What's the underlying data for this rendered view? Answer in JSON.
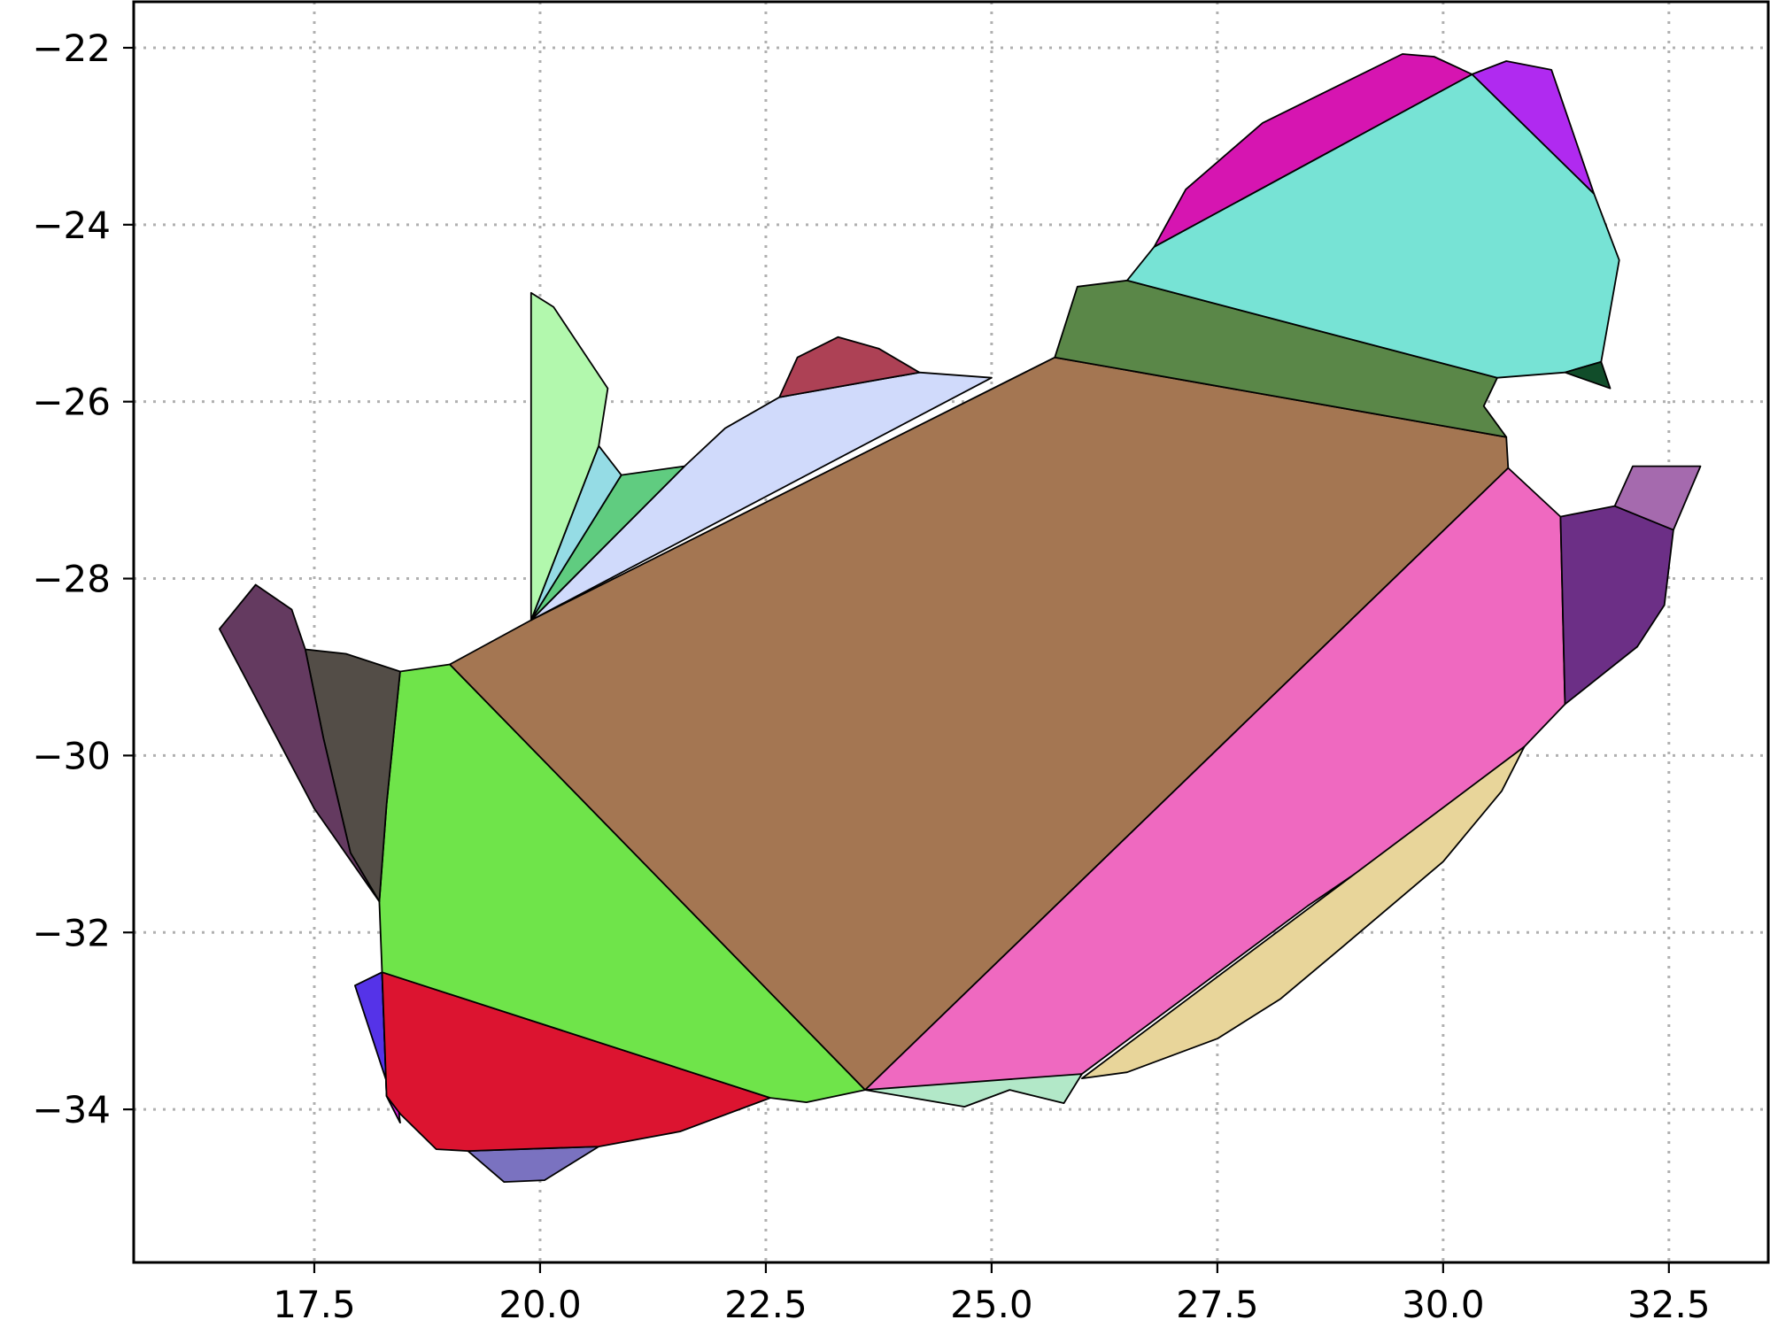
{
  "chart_data": {
    "type": "polygon_map",
    "title": "",
    "xlabel": "",
    "ylabel": "",
    "xlim": [
      15.5,
      33.6
    ],
    "ylim": [
      -35.73,
      -21.48
    ],
    "grid": true,
    "legend": "none",
    "x_ticks": [
      {
        "value": 17.5,
        "label": "17.5"
      },
      {
        "value": 20.0,
        "label": "20.0"
      },
      {
        "value": 22.5,
        "label": "22.5"
      },
      {
        "value": 25.0,
        "label": "25.0"
      },
      {
        "value": 27.5,
        "label": "27.5"
      },
      {
        "value": 30.0,
        "label": "30.0"
      },
      {
        "value": 32.5,
        "label": "32.5"
      }
    ],
    "y_ticks": [
      {
        "value": -22,
        "label": "−22"
      },
      {
        "value": -24,
        "label": "−24"
      },
      {
        "value": -26,
        "label": "−26"
      },
      {
        "value": -28,
        "label": "−28"
      },
      {
        "value": -30,
        "label": "−30"
      },
      {
        "value": -32,
        "label": "−32"
      },
      {
        "value": -34,
        "label": "−34"
      }
    ],
    "polygons": [
      {
        "color": "#7A72C0",
        "points": [
          [
            19.2,
            -34.47
          ],
          [
            19.6,
            -34.82
          ],
          [
            20.05,
            -34.8
          ],
          [
            20.65,
            -34.42
          ]
        ]
      },
      {
        "color": "#5533E8",
        "points": [
          [
            17.95,
            -32.6
          ],
          [
            18.25,
            -32.45
          ],
          [
            18.3,
            -33.85
          ],
          [
            18.45,
            -34.15
          ]
        ]
      },
      {
        "color": "#D41FD4",
        "points": [
          [
            18.25,
            -32.45
          ],
          [
            18.3,
            -33.85
          ],
          [
            18.45,
            -34.15
          ]
        ]
      },
      {
        "color": "#DC1430",
        "points": [
          [
            18.25,
            -32.45
          ],
          [
            22.55,
            -33.87
          ],
          [
            21.55,
            -34.25
          ],
          [
            20.65,
            -34.42
          ],
          [
            19.2,
            -34.47
          ],
          [
            18.85,
            -34.45
          ],
          [
            18.45,
            -34.05
          ],
          [
            18.3,
            -33.85
          ]
        ]
      },
      {
        "color": "#6FE44A",
        "points": [
          [
            18.45,
            -29.05
          ],
          [
            19.0,
            -28.97
          ],
          [
            23.6,
            -33.78
          ],
          [
            22.95,
            -33.92
          ],
          [
            22.55,
            -33.87
          ],
          [
            18.25,
            -32.45
          ],
          [
            18.22,
            -31.65
          ],
          [
            18.3,
            -30.55
          ]
        ]
      },
      {
        "color": "#534D47",
        "points": [
          [
            17.4,
            -28.8
          ],
          [
            17.85,
            -28.85
          ],
          [
            18.45,
            -29.05
          ],
          [
            18.3,
            -30.55
          ],
          [
            18.22,
            -31.65
          ],
          [
            17.9,
            -31.1
          ],
          [
            17.6,
            -29.8
          ]
        ]
      },
      {
        "color": "#643A60",
        "points": [
          [
            16.45,
            -28.57
          ],
          [
            16.85,
            -28.07
          ],
          [
            17.25,
            -28.35
          ],
          [
            17.4,
            -28.8
          ],
          [
            17.6,
            -29.8
          ],
          [
            17.9,
            -31.1
          ],
          [
            18.22,
            -31.65
          ],
          [
            17.5,
            -30.6
          ]
        ]
      },
      {
        "color": "#A47652",
        "points": [
          [
            19.0,
            -28.97
          ],
          [
            19.9,
            -28.47
          ],
          [
            25.7,
            -25.5
          ],
          [
            30.7,
            -26.4
          ],
          [
            30.72,
            -26.75
          ],
          [
            23.6,
            -33.78
          ]
        ]
      },
      {
        "color": "#EF69C0",
        "points": [
          [
            30.72,
            -26.75
          ],
          [
            31.3,
            -27.3
          ],
          [
            31.35,
            -29.42
          ],
          [
            30.9,
            -29.9
          ],
          [
            29.8,
            -30.8
          ],
          [
            28.5,
            -31.7
          ],
          [
            26.0,
            -33.6
          ],
          [
            25.2,
            -33.75
          ],
          [
            23.6,
            -33.78
          ]
        ]
      },
      {
        "color": "#E8D59A",
        "points": [
          [
            30.9,
            -29.9
          ],
          [
            30.65,
            -30.4
          ],
          [
            30.0,
            -31.2
          ],
          [
            28.9,
            -32.15
          ],
          [
            28.2,
            -32.75
          ],
          [
            27.5,
            -33.2
          ],
          [
            26.5,
            -33.58
          ],
          [
            26.0,
            -33.65
          ]
        ]
      },
      {
        "color": "#B2E8C8",
        "points": [
          [
            23.6,
            -33.78
          ],
          [
            24.7,
            -33.97
          ],
          [
            25.2,
            -33.78
          ],
          [
            25.8,
            -33.93
          ],
          [
            26.0,
            -33.6
          ]
        ]
      },
      {
        "color": "#5A8748",
        "points": [
          [
            25.7,
            -25.5
          ],
          [
            25.95,
            -24.7
          ],
          [
            26.5,
            -24.63
          ],
          [
            30.6,
            -25.73
          ],
          [
            30.45,
            -26.05
          ],
          [
            30.7,
            -26.4
          ]
        ]
      },
      {
        "color": "#77E3D5",
        "points": [
          [
            26.5,
            -24.63
          ],
          [
            26.8,
            -24.25
          ],
          [
            30.32,
            -22.3
          ],
          [
            31.67,
            -23.65
          ],
          [
            31.95,
            -24.4
          ],
          [
            31.75,
            -25.55
          ],
          [
            31.35,
            -25.67
          ],
          [
            30.6,
            -25.73
          ]
        ]
      },
      {
        "color": "#D615B1",
        "points": [
          [
            26.8,
            -24.25
          ],
          [
            27.15,
            -23.6
          ],
          [
            28.0,
            -22.85
          ],
          [
            29.55,
            -22.07
          ],
          [
            29.9,
            -22.1
          ],
          [
            30.32,
            -22.3
          ]
        ]
      },
      {
        "color": "#B02AF0",
        "points": [
          [
            30.32,
            -22.3
          ],
          [
            30.7,
            -22.15
          ],
          [
            31.2,
            -22.25
          ],
          [
            31.67,
            -23.65
          ]
        ]
      },
      {
        "color": "#114D2A",
        "points": [
          [
            31.35,
            -25.67
          ],
          [
            31.75,
            -25.55
          ],
          [
            31.85,
            -25.85
          ]
        ]
      },
      {
        "color": "#6C2F86",
        "points": [
          [
            31.3,
            -27.3
          ],
          [
            31.9,
            -27.18
          ],
          [
            32.55,
            -27.45
          ],
          [
            32.45,
            -28.3
          ],
          [
            32.15,
            -28.77
          ],
          [
            31.35,
            -29.42
          ]
        ]
      },
      {
        "color": "#A56AAE",
        "points": [
          [
            31.9,
            -27.18
          ],
          [
            32.1,
            -26.73
          ],
          [
            32.85,
            -26.73
          ],
          [
            32.55,
            -27.45
          ]
        ]
      },
      {
        "color": "#D0DAFB",
        "points": [
          [
            19.9,
            -28.47
          ],
          [
            21.6,
            -26.73
          ],
          [
            22.05,
            -26.3
          ],
          [
            22.65,
            -25.95
          ],
          [
            24.2,
            -25.67
          ],
          [
            25.0,
            -25.73
          ]
        ]
      },
      {
        "color": "#AD4155",
        "points": [
          [
            22.65,
            -25.95
          ],
          [
            22.85,
            -25.5
          ],
          [
            23.3,
            -25.27
          ],
          [
            23.75,
            -25.4
          ],
          [
            24.2,
            -25.67
          ]
        ]
      },
      {
        "color": "#60CC80",
        "points": [
          [
            19.9,
            -28.47
          ],
          [
            20.9,
            -26.83
          ],
          [
            21.6,
            -26.73
          ]
        ]
      },
      {
        "color": "#95DCE5",
        "points": [
          [
            19.9,
            -28.47
          ],
          [
            20.65,
            -26.5
          ],
          [
            20.9,
            -26.83
          ]
        ]
      },
      {
        "color": "#B2F8AD",
        "points": [
          [
            19.9,
            -28.47
          ],
          [
            19.9,
            -24.77
          ],
          [
            20.15,
            -24.93
          ],
          [
            20.75,
            -25.85
          ],
          [
            20.65,
            -26.5
          ]
        ]
      }
    ]
  }
}
